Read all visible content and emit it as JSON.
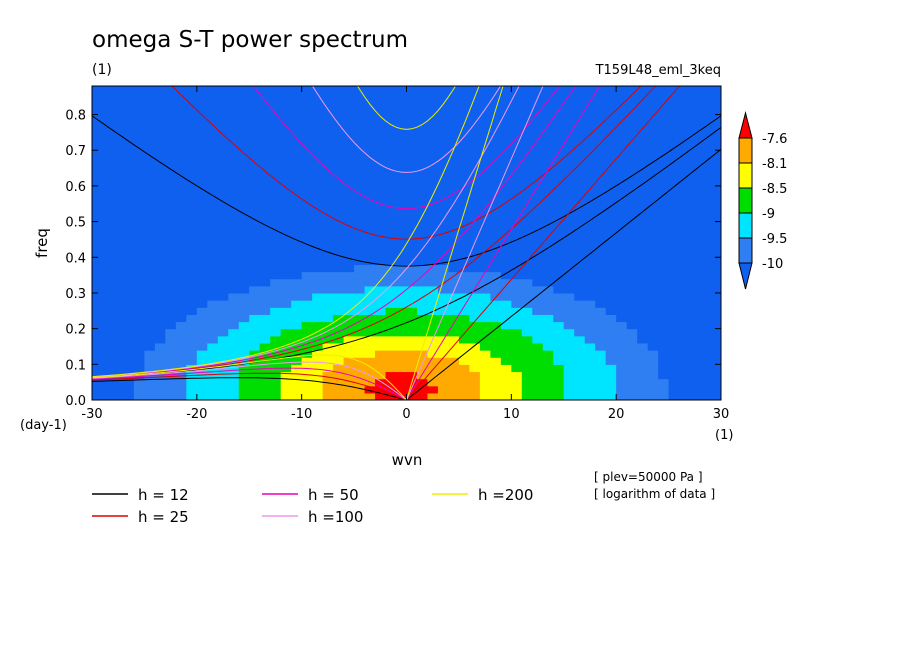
{
  "chart_data": {
    "type": "heatmap",
    "title": "omega S-T power spectrum",
    "subtitle_left": "(1)",
    "subtitle_right": "T159L48_eml_3keq",
    "xlabel": "wvn",
    "xunit": "(1)",
    "ylabel": "freq",
    "yunit": "(day-1)",
    "xlim": [
      -30,
      30
    ],
    "ylim": [
      0,
      0.88
    ],
    "xticks": [
      -30,
      -20,
      -10,
      0,
      10,
      20,
      30
    ],
    "xtick_labels": [
      "-30",
      "-20",
      "-10",
      "0",
      "10",
      "20",
      "30"
    ],
    "yticks": [
      0.0,
      0.1,
      0.2,
      0.3,
      0.4,
      0.5,
      0.6,
      0.7,
      0.8
    ],
    "ytick_labels": [
      "0.0",
      "0.1",
      "0.2",
      "0.3",
      "0.4",
      "0.5",
      "0.6",
      "0.7",
      "0.8"
    ],
    "colorbar": {
      "levels": [
        -10,
        -9.5,
        -9,
        -8.5,
        -8.1,
        -7.6
      ],
      "labels": [
        "-10",
        "-9.5",
        "-9",
        "-8.5",
        "-8.1",
        "-7.6"
      ],
      "colors": [
        "#2f7ff3",
        "#00e5ff",
        "#00dd00",
        "#ffff00",
        "#ffaa00",
        "#ff0000"
      ],
      "under_color": "#1060f0",
      "over_color": "#ff0000"
    },
    "dispersion_curves": [
      {
        "name": "h = 12",
        "h": 12,
        "color": "#000000"
      },
      {
        "name": "h = 25",
        "h": 25,
        "color": "#dd0000"
      },
      {
        "name": "h = 50",
        "h": 50,
        "color": "#ee00bb"
      },
      {
        "name": "h =100",
        "h": 100,
        "color": "#ee99ee"
      },
      {
        "name": "h =200",
        "h": 200,
        "color": "#eeee00"
      }
    ],
    "notes": [
      "[ plev=50000 Pa ]",
      "[ logarithm of data ]"
    ]
  }
}
